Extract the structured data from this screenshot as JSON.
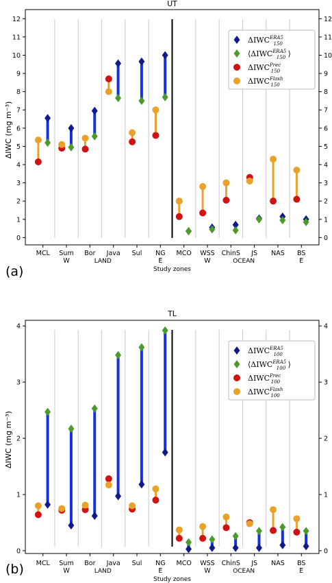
{
  "chart_data": [
    {
      "type": "scatter",
      "panel_label": "(a)",
      "title": "UT",
      "ylabel": "ΔIWC (mg m⁻³)",
      "xlabel": "Study zones",
      "ylim": [
        -0.4,
        12.5
      ],
      "yticks": [
        "0",
        "1",
        "2",
        "3",
        "4",
        "5",
        "6",
        "7",
        "8",
        "9",
        "10",
        "11",
        "12"
      ],
      "categories": [
        "MCL",
        "Sum W",
        "Bor",
        "Java",
        "Sul",
        "NG E",
        "MCO",
        "WSS W",
        "ChinS",
        "JS",
        "NAS",
        "BS E"
      ],
      "category_lines": [
        [
          "MCL"
        ],
        [
          "Sum",
          "W"
        ],
        [
          "Bor"
        ],
        [
          "Java"
        ],
        [
          "Sul"
        ],
        [
          "NG",
          "E"
        ],
        [
          "MCO"
        ],
        [
          "WSS",
          "W"
        ],
        [
          "ChinS"
        ],
        [
          "JS"
        ],
        [
          "NAS"
        ],
        [
          "BS",
          "E"
        ]
      ],
      "groups": [
        "LAND",
        "OCEAN"
      ],
      "legend_placement": "top-right",
      "legend": [
        {
          "base": "ΔIWC",
          "sup": "ERA5",
          "sub": "150",
          "bracket": false
        },
        {
          "base": "ΔIWC",
          "sup": "ERA5",
          "sub": "150",
          "bracket": true
        },
        {
          "base": "ΔIWC",
          "sup": "Prec",
          "sub": "150",
          "bracket": false
        },
        {
          "base": "ΔIWC",
          "sup": "Flash",
          "sub": "150",
          "bracket": false
        }
      ],
      "series": [
        {
          "key": "era5",
          "values": [
            6.55,
            6.0,
            6.95,
            9.55,
            9.65,
            10.0,
            0.35,
            0.55,
            0.7,
            1.05,
            1.15,
            1.0
          ]
        },
        {
          "key": "era5_mean",
          "values": [
            5.2,
            4.95,
            5.55,
            7.65,
            7.5,
            7.7,
            0.35,
            0.45,
            0.4,
            1.0,
            0.95,
            0.85
          ]
        },
        {
          "key": "prec",
          "values": [
            4.15,
            4.9,
            4.85,
            8.7,
            5.25,
            5.6,
            1.15,
            1.35,
            2.05,
            3.3,
            2.0,
            2.1
          ]
        },
        {
          "key": "flash",
          "values": [
            5.35,
            5.1,
            5.45,
            8.0,
            5.75,
            7.0,
            2.0,
            2.8,
            3.0,
            3.1,
            4.3,
            3.7
          ]
        }
      ]
    },
    {
      "type": "scatter",
      "panel_label": "(b)",
      "title": "TL",
      "ylabel": "ΔIWC (mg m⁻³)",
      "xlabel": "Study zones",
      "ylim": [
        -0.05,
        4.1
      ],
      "yticks": [
        "0",
        "1",
        "2",
        "3",
        "4"
      ],
      "categories": [
        "MCL",
        "Sum W",
        "Bor",
        "Java",
        "Sul",
        "NG E",
        "MCO",
        "WSS W",
        "ChinS",
        "JS",
        "NAS",
        "BS E"
      ],
      "category_lines": [
        [
          "MCL"
        ],
        [
          "Sum",
          "W"
        ],
        [
          "Bor"
        ],
        [
          "Java"
        ],
        [
          "Sul"
        ],
        [
          "NG",
          "E"
        ],
        [
          "MCO"
        ],
        [
          "WSS",
          "W"
        ],
        [
          "ChinS"
        ],
        [
          "JS"
        ],
        [
          "NAS"
        ],
        [
          "BS",
          "E"
        ]
      ],
      "groups": [
        "LAND",
        "OCEAN"
      ],
      "legend_placement": "top-right",
      "legend": [
        {
          "base": "ΔIWC",
          "sup": "ERA5",
          "sub": "100",
          "bracket": false
        },
        {
          "base": "ΔIWC",
          "sup": "ERA5",
          "sub": "100",
          "bracket": true
        },
        {
          "base": "ΔIWC",
          "sup": "Prec",
          "sub": "100",
          "bracket": false
        },
        {
          "base": "ΔIWC",
          "sup": "Flash",
          "sub": "100",
          "bracket": false
        }
      ],
      "series": [
        {
          "key": "era5",
          "values": [
            0.82,
            0.45,
            0.62,
            0.97,
            1.18,
            1.75,
            0.03,
            0.05,
            0.05,
            0.05,
            0.1,
            0.08
          ]
        },
        {
          "key": "era5_mean",
          "values": [
            2.47,
            2.17,
            2.53,
            3.48,
            3.62,
            3.92,
            0.15,
            0.2,
            0.26,
            0.35,
            0.42,
            0.35
          ]
        },
        {
          "key": "prec",
          "values": [
            0.64,
            0.72,
            0.73,
            1.28,
            0.74,
            0.9,
            0.22,
            0.22,
            0.41,
            0.5,
            0.36,
            0.33
          ]
        },
        {
          "key": "flash",
          "values": [
            0.8,
            0.75,
            0.81,
            1.17,
            0.8,
            1.1,
            0.37,
            0.43,
            0.6,
            0.48,
            0.73,
            0.57
          ]
        }
      ]
    }
  ],
  "colors": {
    "era5": "#101a8c",
    "era5_mean": "#4c9a2a",
    "prec": "#d11212",
    "flash": "#e8a22a",
    "range_land": "#1530e0",
    "range_ocean_flash": "#e8a22a",
    "grid": "#c8c8c8"
  }
}
